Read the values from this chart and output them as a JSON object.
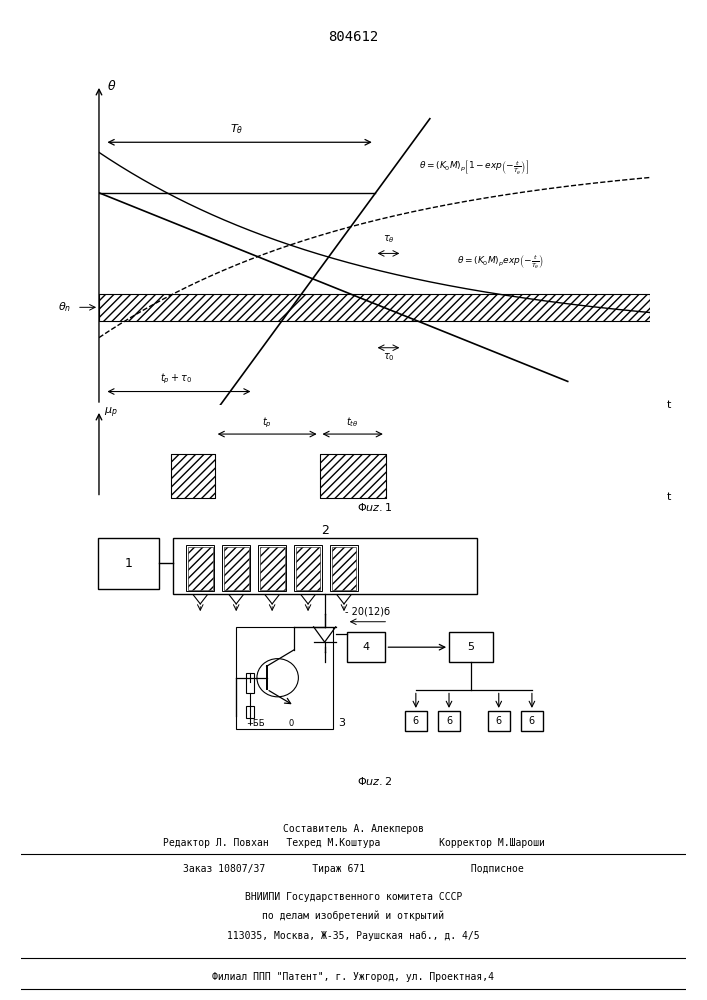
{
  "title": "804612",
  "title_fontsize": 10,
  "bg_color": "#ffffff",
  "fig_bg": "#ffffff",
  "footer_lines": [
    "Составитель А. Алекперов",
    "Редактор Л. Повхан   Техред М.Коштура          Корректор М.Шароши",
    "Заказ 10807/37        Тираж 671                  Подписное",
    "ВНИИПИ Государственного комитета СССР",
    "по делам изобретений и открытий",
    "113035, Москва, Ж-35, Раушская наб., д. 4/5",
    "Филиал ППП \"Патент\", г. Ужгород, ул. Проектная,4"
  ]
}
